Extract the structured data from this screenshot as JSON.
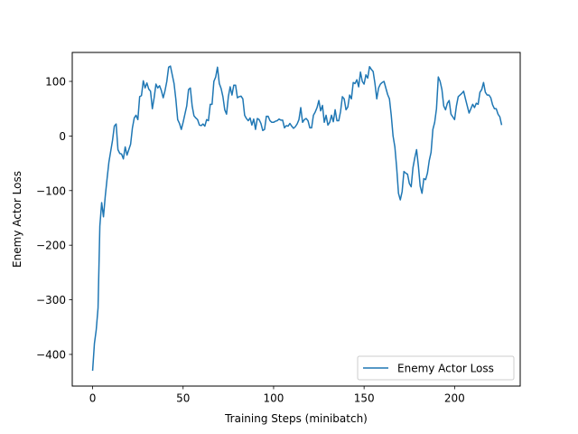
{
  "chart_data": {
    "type": "line",
    "title": "",
    "xlabel": "Training Steps (minibatch)",
    "ylabel": "Enemy Actor Loss",
    "xlim": [
      -11.25,
      236.25
    ],
    "ylim": [
      -458,
      153
    ],
    "xticks": [
      0,
      50,
      100,
      150,
      200
    ],
    "yticks": [
      -400,
      -300,
      -200,
      -100,
      0,
      100
    ],
    "grid": false,
    "legend_position": "lower-right",
    "series": [
      {
        "name": "Enemy Actor Loss",
        "color": "#1f77b4",
        "points": [
          [
            0,
            -430
          ],
          [
            1,
            -380
          ],
          [
            2,
            -355
          ],
          [
            3,
            -315
          ],
          [
            4,
            -165
          ],
          [
            5,
            -122
          ],
          [
            6,
            -148
          ],
          [
            7,
            -110
          ],
          [
            8,
            -78
          ],
          [
            9,
            -48
          ],
          [
            10,
            -28
          ],
          [
            11,
            -8
          ],
          [
            12,
            18
          ],
          [
            13,
            22
          ],
          [
            14,
            -25
          ],
          [
            15,
            -32
          ],
          [
            16,
            -33
          ],
          [
            17,
            -42
          ],
          [
            18,
            -20
          ],
          [
            19,
            -35
          ],
          [
            20,
            -25
          ],
          [
            21,
            -15
          ],
          [
            22,
            15
          ],
          [
            23,
            33
          ],
          [
            24,
            38
          ],
          [
            25,
            30
          ],
          [
            26,
            72
          ],
          [
            27,
            74
          ],
          [
            28,
            101
          ],
          [
            29,
            88
          ],
          [
            30,
            97
          ],
          [
            31,
            86
          ],
          [
            32,
            82
          ],
          [
            33,
            50
          ],
          [
            34,
            70
          ],
          [
            35,
            95
          ],
          [
            36,
            88
          ],
          [
            37,
            92
          ],
          [
            38,
            83
          ],
          [
            39,
            70
          ],
          [
            40,
            83
          ],
          [
            41,
            100
          ],
          [
            42,
            126
          ],
          [
            43,
            128
          ],
          [
            44,
            112
          ],
          [
            45,
            96
          ],
          [
            46,
            67
          ],
          [
            47,
            30
          ],
          [
            48,
            23
          ],
          [
            49,
            12
          ],
          [
            50,
            25
          ],
          [
            51,
            40
          ],
          [
            52,
            55
          ],
          [
            53,
            85
          ],
          [
            54,
            88
          ],
          [
            55,
            55
          ],
          [
            56,
            37
          ],
          [
            57,
            33
          ],
          [
            58,
            30
          ],
          [
            59,
            20
          ],
          [
            60,
            19
          ],
          [
            61,
            22
          ],
          [
            62,
            18
          ],
          [
            63,
            30
          ],
          [
            64,
            28
          ],
          [
            65,
            58
          ],
          [
            66,
            58
          ],
          [
            67,
            100
          ],
          [
            68,
            108
          ],
          [
            69,
            126
          ],
          [
            70,
            96
          ],
          [
            71,
            87
          ],
          [
            72,
            72
          ],
          [
            73,
            48
          ],
          [
            74,
            40
          ],
          [
            75,
            72
          ],
          [
            76,
            90
          ],
          [
            77,
            75
          ],
          [
            78,
            93
          ],
          [
            79,
            93
          ],
          [
            80,
            70
          ],
          [
            81,
            72
          ],
          [
            82,
            73
          ],
          [
            83,
            68
          ],
          [
            84,
            38
          ],
          [
            85,
            32
          ],
          [
            86,
            28
          ],
          [
            87,
            33
          ],
          [
            88,
            20
          ],
          [
            89,
            31
          ],
          [
            90,
            12
          ],
          [
            91,
            32
          ],
          [
            92,
            30
          ],
          [
            93,
            23
          ],
          [
            94,
            10
          ],
          [
            95,
            12
          ],
          [
            96,
            36
          ],
          [
            97,
            36
          ],
          [
            98,
            28
          ],
          [
            99,
            25
          ],
          [
            100,
            25
          ],
          [
            101,
            27
          ],
          [
            102,
            28
          ],
          [
            103,
            31
          ],
          [
            104,
            29
          ],
          [
            105,
            29
          ],
          [
            106,
            15
          ],
          [
            107,
            19
          ],
          [
            108,
            18
          ],
          [
            109,
            23
          ],
          [
            110,
            18
          ],
          [
            111,
            14
          ],
          [
            112,
            17
          ],
          [
            113,
            22
          ],
          [
            114,
            30
          ],
          [
            115,
            52
          ],
          [
            116,
            25
          ],
          [
            117,
            30
          ],
          [
            118,
            32
          ],
          [
            119,
            28
          ],
          [
            120,
            15
          ],
          [
            121,
            15
          ],
          [
            122,
            38
          ],
          [
            123,
            44
          ],
          [
            124,
            52
          ],
          [
            125,
            65
          ],
          [
            126,
            46
          ],
          [
            127,
            56
          ],
          [
            128,
            25
          ],
          [
            129,
            38
          ],
          [
            130,
            20
          ],
          [
            131,
            25
          ],
          [
            132,
            38
          ],
          [
            133,
            26
          ],
          [
            134,
            48
          ],
          [
            135,
            28
          ],
          [
            136,
            28
          ],
          [
            137,
            45
          ],
          [
            138,
            72
          ],
          [
            139,
            68
          ],
          [
            140,
            48
          ],
          [
            141,
            53
          ],
          [
            142,
            75
          ],
          [
            143,
            68
          ],
          [
            144,
            98
          ],
          [
            145,
            96
          ],
          [
            146,
            103
          ],
          [
            147,
            90
          ],
          [
            148,
            117
          ],
          [
            149,
            100
          ],
          [
            150,
            95
          ],
          [
            151,
            112
          ],
          [
            152,
            106
          ],
          [
            153,
            127
          ],
          [
            154,
            122
          ],
          [
            155,
            118
          ],
          [
            156,
            96
          ],
          [
            157,
            68
          ],
          [
            158,
            88
          ],
          [
            159,
            95
          ],
          [
            160,
            98
          ],
          [
            161,
            100
          ],
          [
            162,
            88
          ],
          [
            163,
            76
          ],
          [
            164,
            68
          ],
          [
            165,
            38
          ],
          [
            166,
            0
          ],
          [
            167,
            -20
          ],
          [
            168,
            -58
          ],
          [
            169,
            -105
          ],
          [
            170,
            -117
          ],
          [
            171,
            -102
          ],
          [
            172,
            -65
          ],
          [
            173,
            -68
          ],
          [
            174,
            -70
          ],
          [
            175,
            -87
          ],
          [
            176,
            -93
          ],
          [
            177,
            -58
          ],
          [
            178,
            -40
          ],
          [
            179,
            -25
          ],
          [
            180,
            -55
          ],
          [
            181,
            -92
          ],
          [
            182,
            -105
          ],
          [
            183,
            -78
          ],
          [
            184,
            -80
          ],
          [
            185,
            -68
          ],
          [
            186,
            -45
          ],
          [
            187,
            -30
          ],
          [
            188,
            12
          ],
          [
            189,
            25
          ],
          [
            190,
            50
          ],
          [
            191,
            108
          ],
          [
            192,
            100
          ],
          [
            193,
            85
          ],
          [
            194,
            55
          ],
          [
            195,
            48
          ],
          [
            196,
            60
          ],
          [
            197,
            65
          ],
          [
            198,
            40
          ],
          [
            199,
            35
          ],
          [
            200,
            30
          ],
          [
            201,
            55
          ],
          [
            202,
            72
          ],
          [
            203,
            75
          ],
          [
            204,
            78
          ],
          [
            205,
            82
          ],
          [
            206,
            68
          ],
          [
            207,
            55
          ],
          [
            208,
            42
          ],
          [
            209,
            50
          ],
          [
            210,
            58
          ],
          [
            211,
            52
          ],
          [
            212,
            60
          ],
          [
            213,
            58
          ],
          [
            214,
            80
          ],
          [
            215,
            85
          ],
          [
            216,
            98
          ],
          [
            217,
            80
          ],
          [
            218,
            75
          ],
          [
            219,
            75
          ],
          [
            220,
            70
          ],
          [
            221,
            57
          ],
          [
            222,
            50
          ],
          [
            223,
            50
          ],
          [
            224,
            40
          ],
          [
            225,
            35
          ],
          [
            226,
            20
          ]
        ]
      }
    ]
  }
}
